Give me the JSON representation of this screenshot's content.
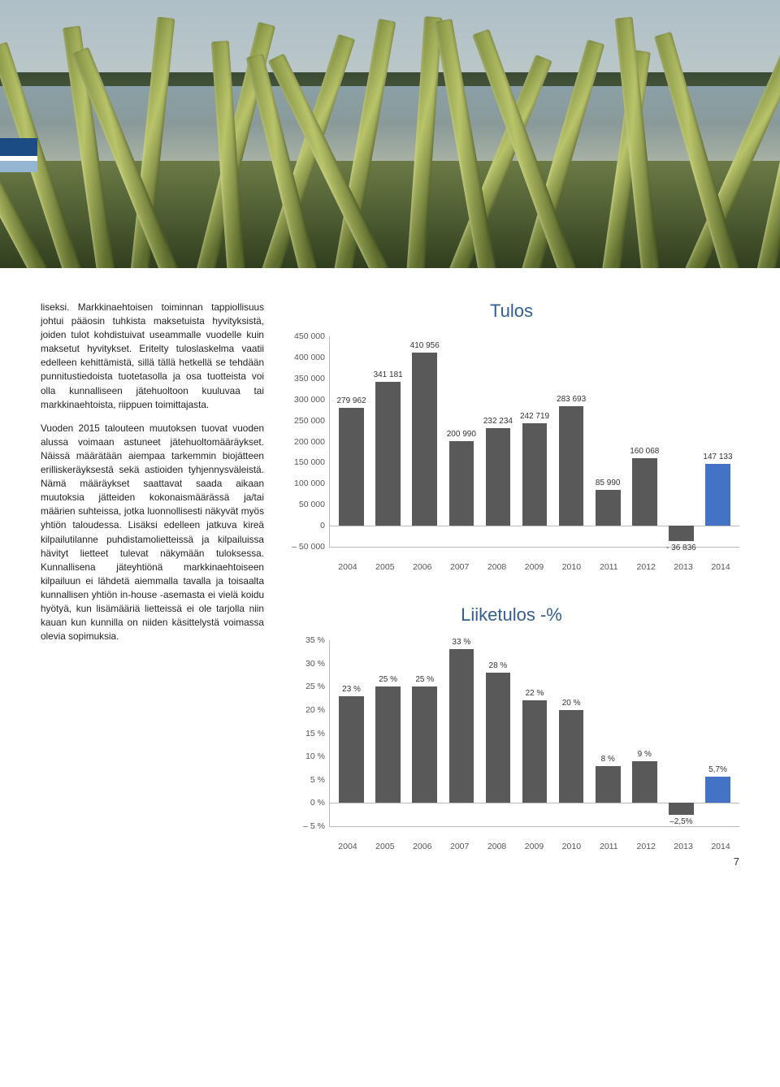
{
  "hero": {
    "sky_gradient": [
      "#aebfc7",
      "#c3ccc9"
    ],
    "water_color": "#8aa0a7",
    "shore_color": "#3a4b33",
    "ground_color": "#4f5e33"
  },
  "body_text": {
    "para1": "liseksi. Markkinaehtoisen toiminnan tappiollisuus johtui pääosin tuhkista maksetuista hyvityksistä, joiden tulot kohdistuivat useammalle vuodelle kuin maksetut hyvitykset. Eritelty tuloslaskelma vaatii edelleen kehittämistä, sillä tällä hetkellä se tehdään punnitustiedoista tuotetasolla ja osa tuotteista voi olla kunnalliseen jätehuoltoon kuuluvaa tai markkinaehtoista, riippuen toimittajasta.",
    "para2": "Vuoden 2015 talouteen muutoksen tuovat vuoden alussa voimaan astuneet jätehuoltomääräykset. Näissä määrätään aiempaa tarkemmin biojätteen erilliskeräyksestä sekä astioiden tyhjennysväleistä. Nämä määräykset saattavat saada aikaan muutoksia jätteiden kokonaismäärässä ja/tai määrien suhteissa, jotka luonnollisesti näkyvät myös yhtiön taloudessa. Lisäksi edelleen jatkuva kireä kilpailutilanne puhdistamolietteissä ja kilpailuissa hävityt lietteet tulevat näkymään tuloksessa. Kunnallisena jäteyhtiönä markkinaehtoiseen kilpailuun ei lähdetä aiemmalla tavalla ja toisaalta kunnallisen yhtiön in-house -asemasta ei vielä koidu hyötyä, kun lisämääriä lietteissä ei ole tarjolla niin kauan kun kunnilla on niiden käsittelystä voimassa olevia sopimuksia."
  },
  "chart1": {
    "type": "bar",
    "title": "Tulos",
    "categories": [
      "2004",
      "2005",
      "2006",
      "2007",
      "2008",
      "2009",
      "2010",
      "2011",
      "2012",
      "2013",
      "2014"
    ],
    "values": [
      279962,
      341181,
      410956,
      200990,
      232234,
      242719,
      283693,
      85990,
      160068,
      -36836,
      147133
    ],
    "value_labels": [
      "279 962",
      "341 181",
      "410 956",
      "200 990",
      "232 234",
      "242 719",
      "283 693",
      "85 990",
      "160 068",
      "- 36 836",
      "147 133"
    ],
    "colors": [
      "#595959",
      "#595959",
      "#595959",
      "#595959",
      "#595959",
      "#595959",
      "#595959",
      "#595959",
      "#595959",
      "#595959",
      "#4472c4"
    ],
    "ymin": -50000,
    "ymax": 450000,
    "ytick_step": 50000,
    "ytick_labels": [
      "– 50 000",
      "0",
      "50 000",
      "100 000",
      "150 000",
      "200 000",
      "250 000",
      "300 000",
      "350 000",
      "400 000",
      "450 000"
    ],
    "label_fontsize": 10,
    "title_color": "#335e92",
    "title_fontsize": 22,
    "grid_color": "#bbbbbb",
    "background_color": "#ffffff"
  },
  "chart2": {
    "type": "bar",
    "title": "Liiketulos -%",
    "categories": [
      "2004",
      "2005",
      "2006",
      "2007",
      "2008",
      "2009",
      "2010",
      "2011",
      "2012",
      "2013",
      "2014"
    ],
    "values": [
      23,
      25,
      25,
      33,
      28,
      22,
      20,
      8,
      9,
      -2.5,
      5.7
    ],
    "value_labels": [
      "23 %",
      "25 %",
      "25 %",
      "33 %",
      "28 %",
      "22 %",
      "20 %",
      "8 %",
      "9 %",
      "–2,5%",
      "5,7%"
    ],
    "colors": [
      "#595959",
      "#595959",
      "#595959",
      "#595959",
      "#595959",
      "#595959",
      "#595959",
      "#595959",
      "#595959",
      "#595959",
      "#4472c4"
    ],
    "ymin": -5,
    "ymax": 35,
    "ytick_step": 5,
    "ytick_labels": [
      "– 5 %",
      "0 %",
      "5 %",
      "10 %",
      "15 %",
      "20 %",
      "25 %",
      "30 %",
      "35 %"
    ],
    "label_fontsize": 10,
    "title_color": "#335e92",
    "title_fontsize": 22,
    "grid_color": "#bbbbbb",
    "background_color": "#ffffff"
  },
  "page_number": "7"
}
